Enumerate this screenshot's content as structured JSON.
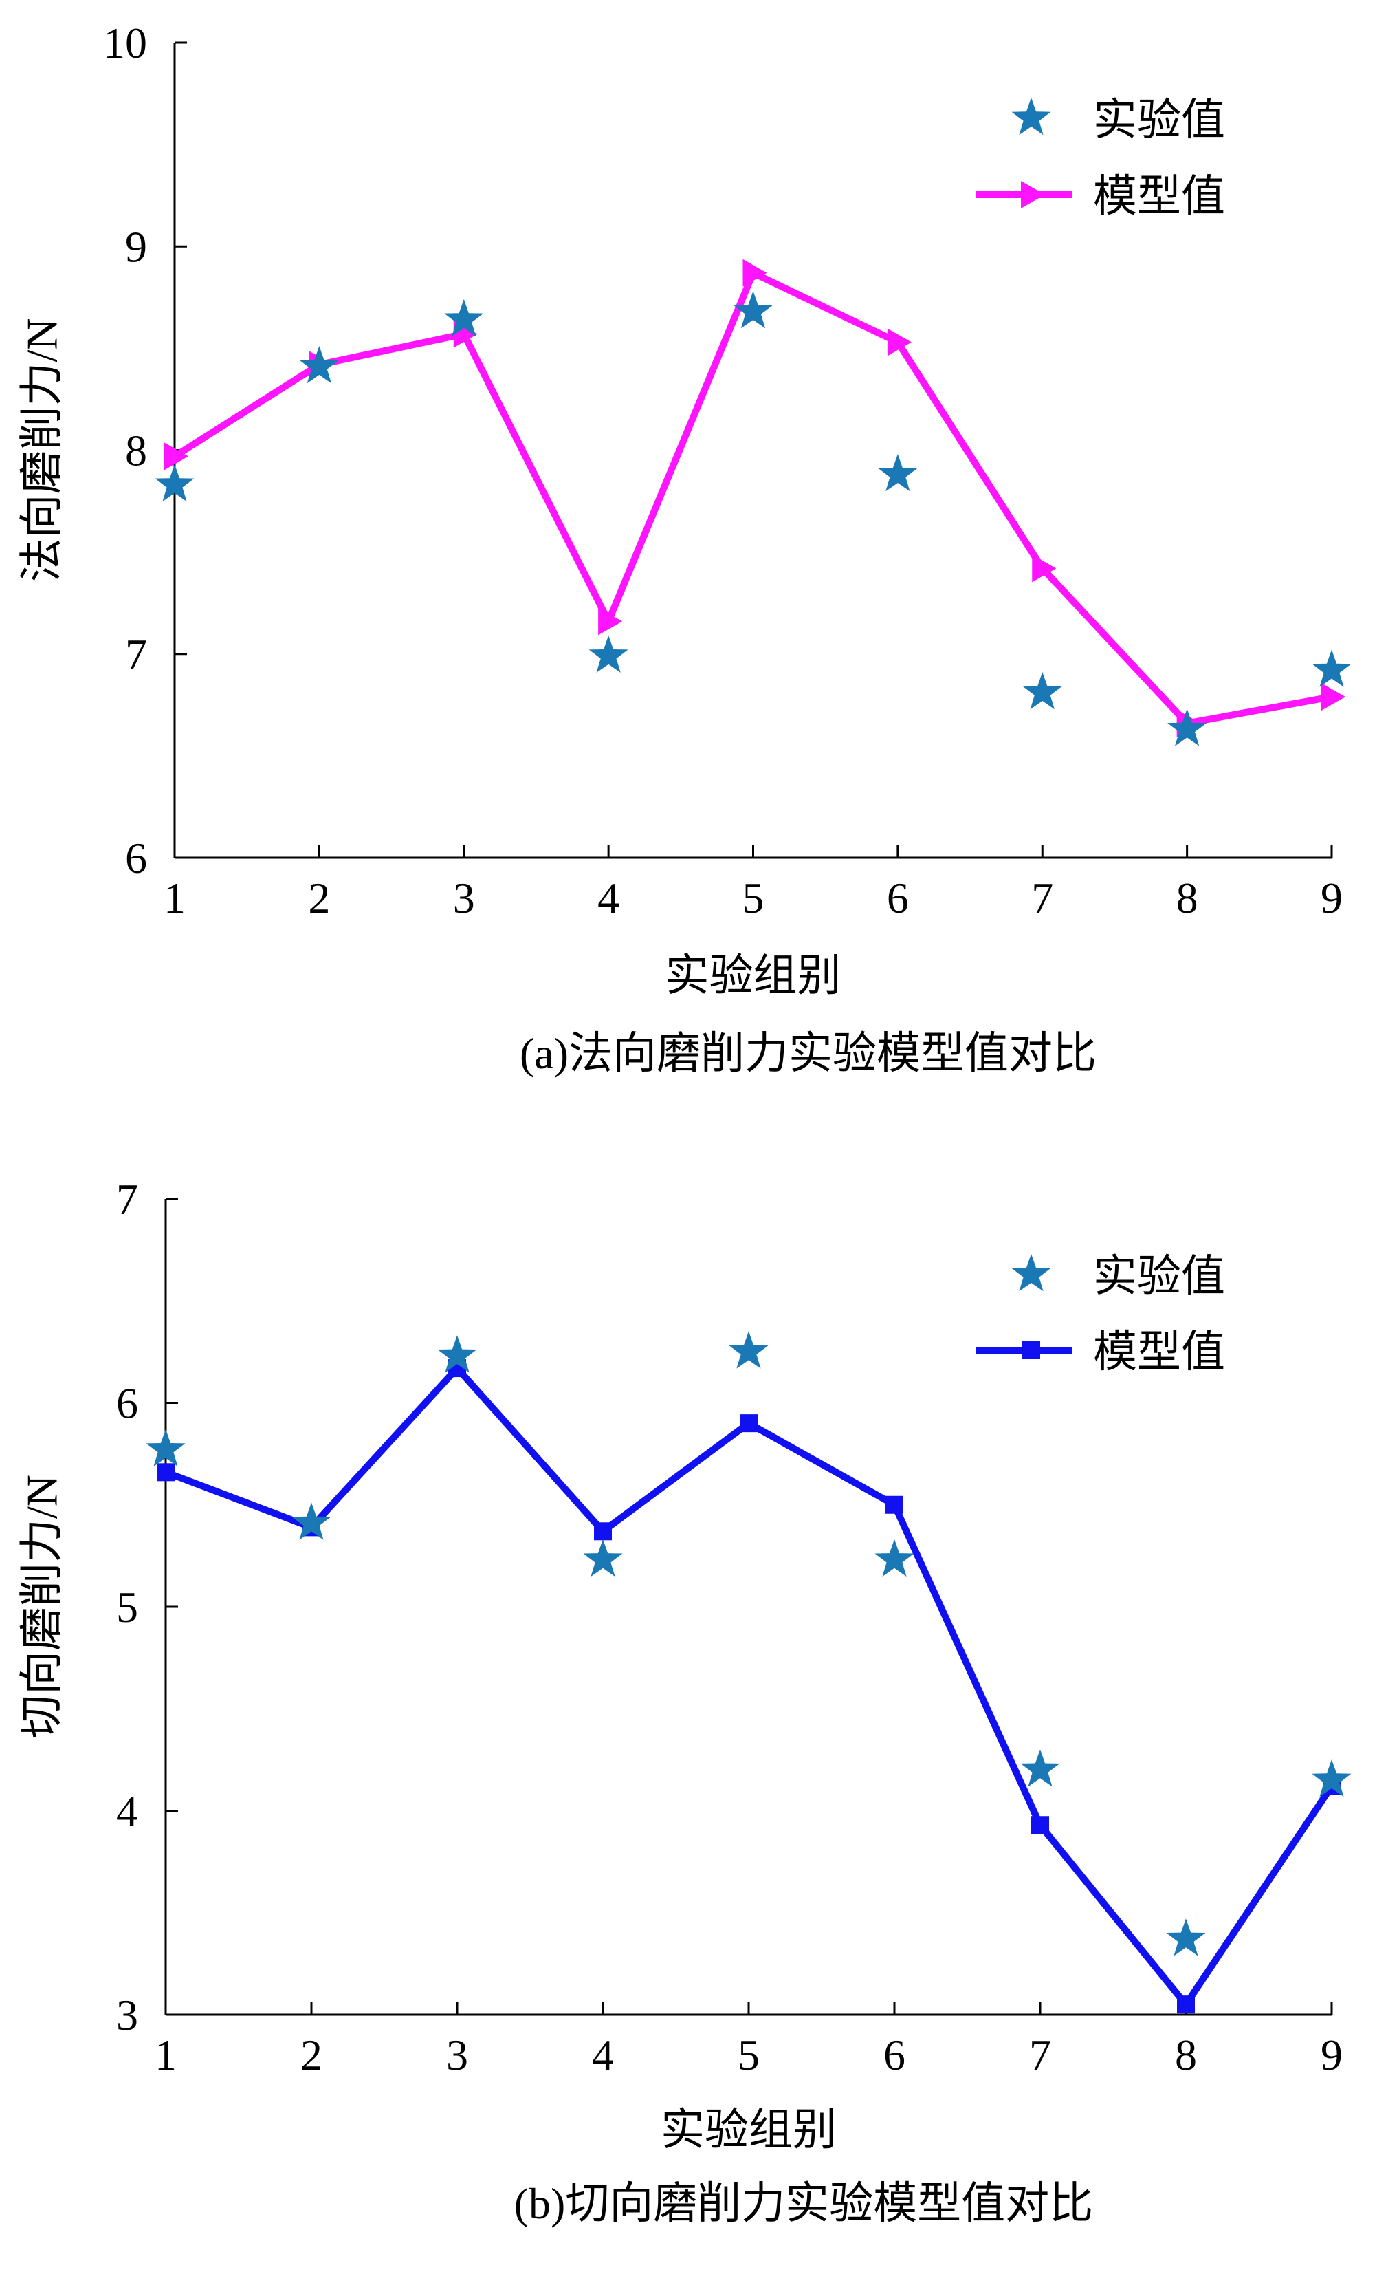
{
  "chart_data": [
    {
      "type": "line",
      "title": "",
      "caption": "(a)法向磨削力实验模型值对比",
      "xlabel": "实验组别",
      "ylabel": "法向磨削力/N",
      "xlim": [
        1,
        9
      ],
      "ylim": [
        6,
        10
      ],
      "xticks": [
        "1",
        "2",
        "3",
        "4",
        "5",
        "6",
        "7",
        "8",
        "9"
      ],
      "yticks": [
        "6",
        "7",
        "8",
        "9",
        "10"
      ],
      "grid": false,
      "legend_position": "top-right",
      "series": [
        {
          "name": "实验值",
          "style": "scatter",
          "marker": "star",
          "color": "#1a78b4",
          "x": [
            1,
            2,
            3,
            4,
            5,
            6,
            7,
            8,
            9
          ],
          "y": [
            7.83,
            8.41,
            8.64,
            6.99,
            8.68,
            7.88,
            6.81,
            6.63,
            6.92
          ]
        },
        {
          "name": "模型值",
          "style": "line",
          "marker": "triangle-right",
          "color": "#ff14ff",
          "x": [
            1,
            2,
            3,
            4,
            5,
            6,
            7,
            8,
            9
          ],
          "y": [
            7.97,
            8.42,
            8.57,
            7.16,
            8.87,
            8.53,
            7.42,
            6.66,
            6.79
          ]
        }
      ]
    },
    {
      "type": "line",
      "title": "",
      "caption": "(b)切向磨削力实验模型值对比",
      "xlabel": "实验组别",
      "ylabel": "切向磨削力/N",
      "xlim": [
        1,
        9
      ],
      "ylim": [
        3,
        7
      ],
      "xticks": [
        "1",
        "2",
        "3",
        "4",
        "5",
        "6",
        "7",
        "8",
        "9"
      ],
      "yticks": [
        "3",
        "4",
        "5",
        "6",
        "7"
      ],
      "grid": false,
      "legend_position": "top-right",
      "series": [
        {
          "name": "实验值",
          "style": "scatter",
          "marker": "star",
          "color": "#1a78b4",
          "x": [
            1,
            2,
            3,
            4,
            5,
            6,
            7,
            8,
            9
          ],
          "y": [
            5.77,
            5.41,
            6.23,
            5.23,
            6.25,
            5.23,
            4.2,
            3.37,
            4.15
          ]
        },
        {
          "name": "模型值",
          "style": "line",
          "marker": "square",
          "color": "#1010f0",
          "x": [
            1,
            2,
            3,
            4,
            5,
            6,
            7,
            8,
            9
          ],
          "y": [
            5.66,
            5.39,
            6.17,
            5.37,
            5.9,
            5.5,
            3.93,
            3.05,
            4.12
          ]
        }
      ]
    }
  ]
}
